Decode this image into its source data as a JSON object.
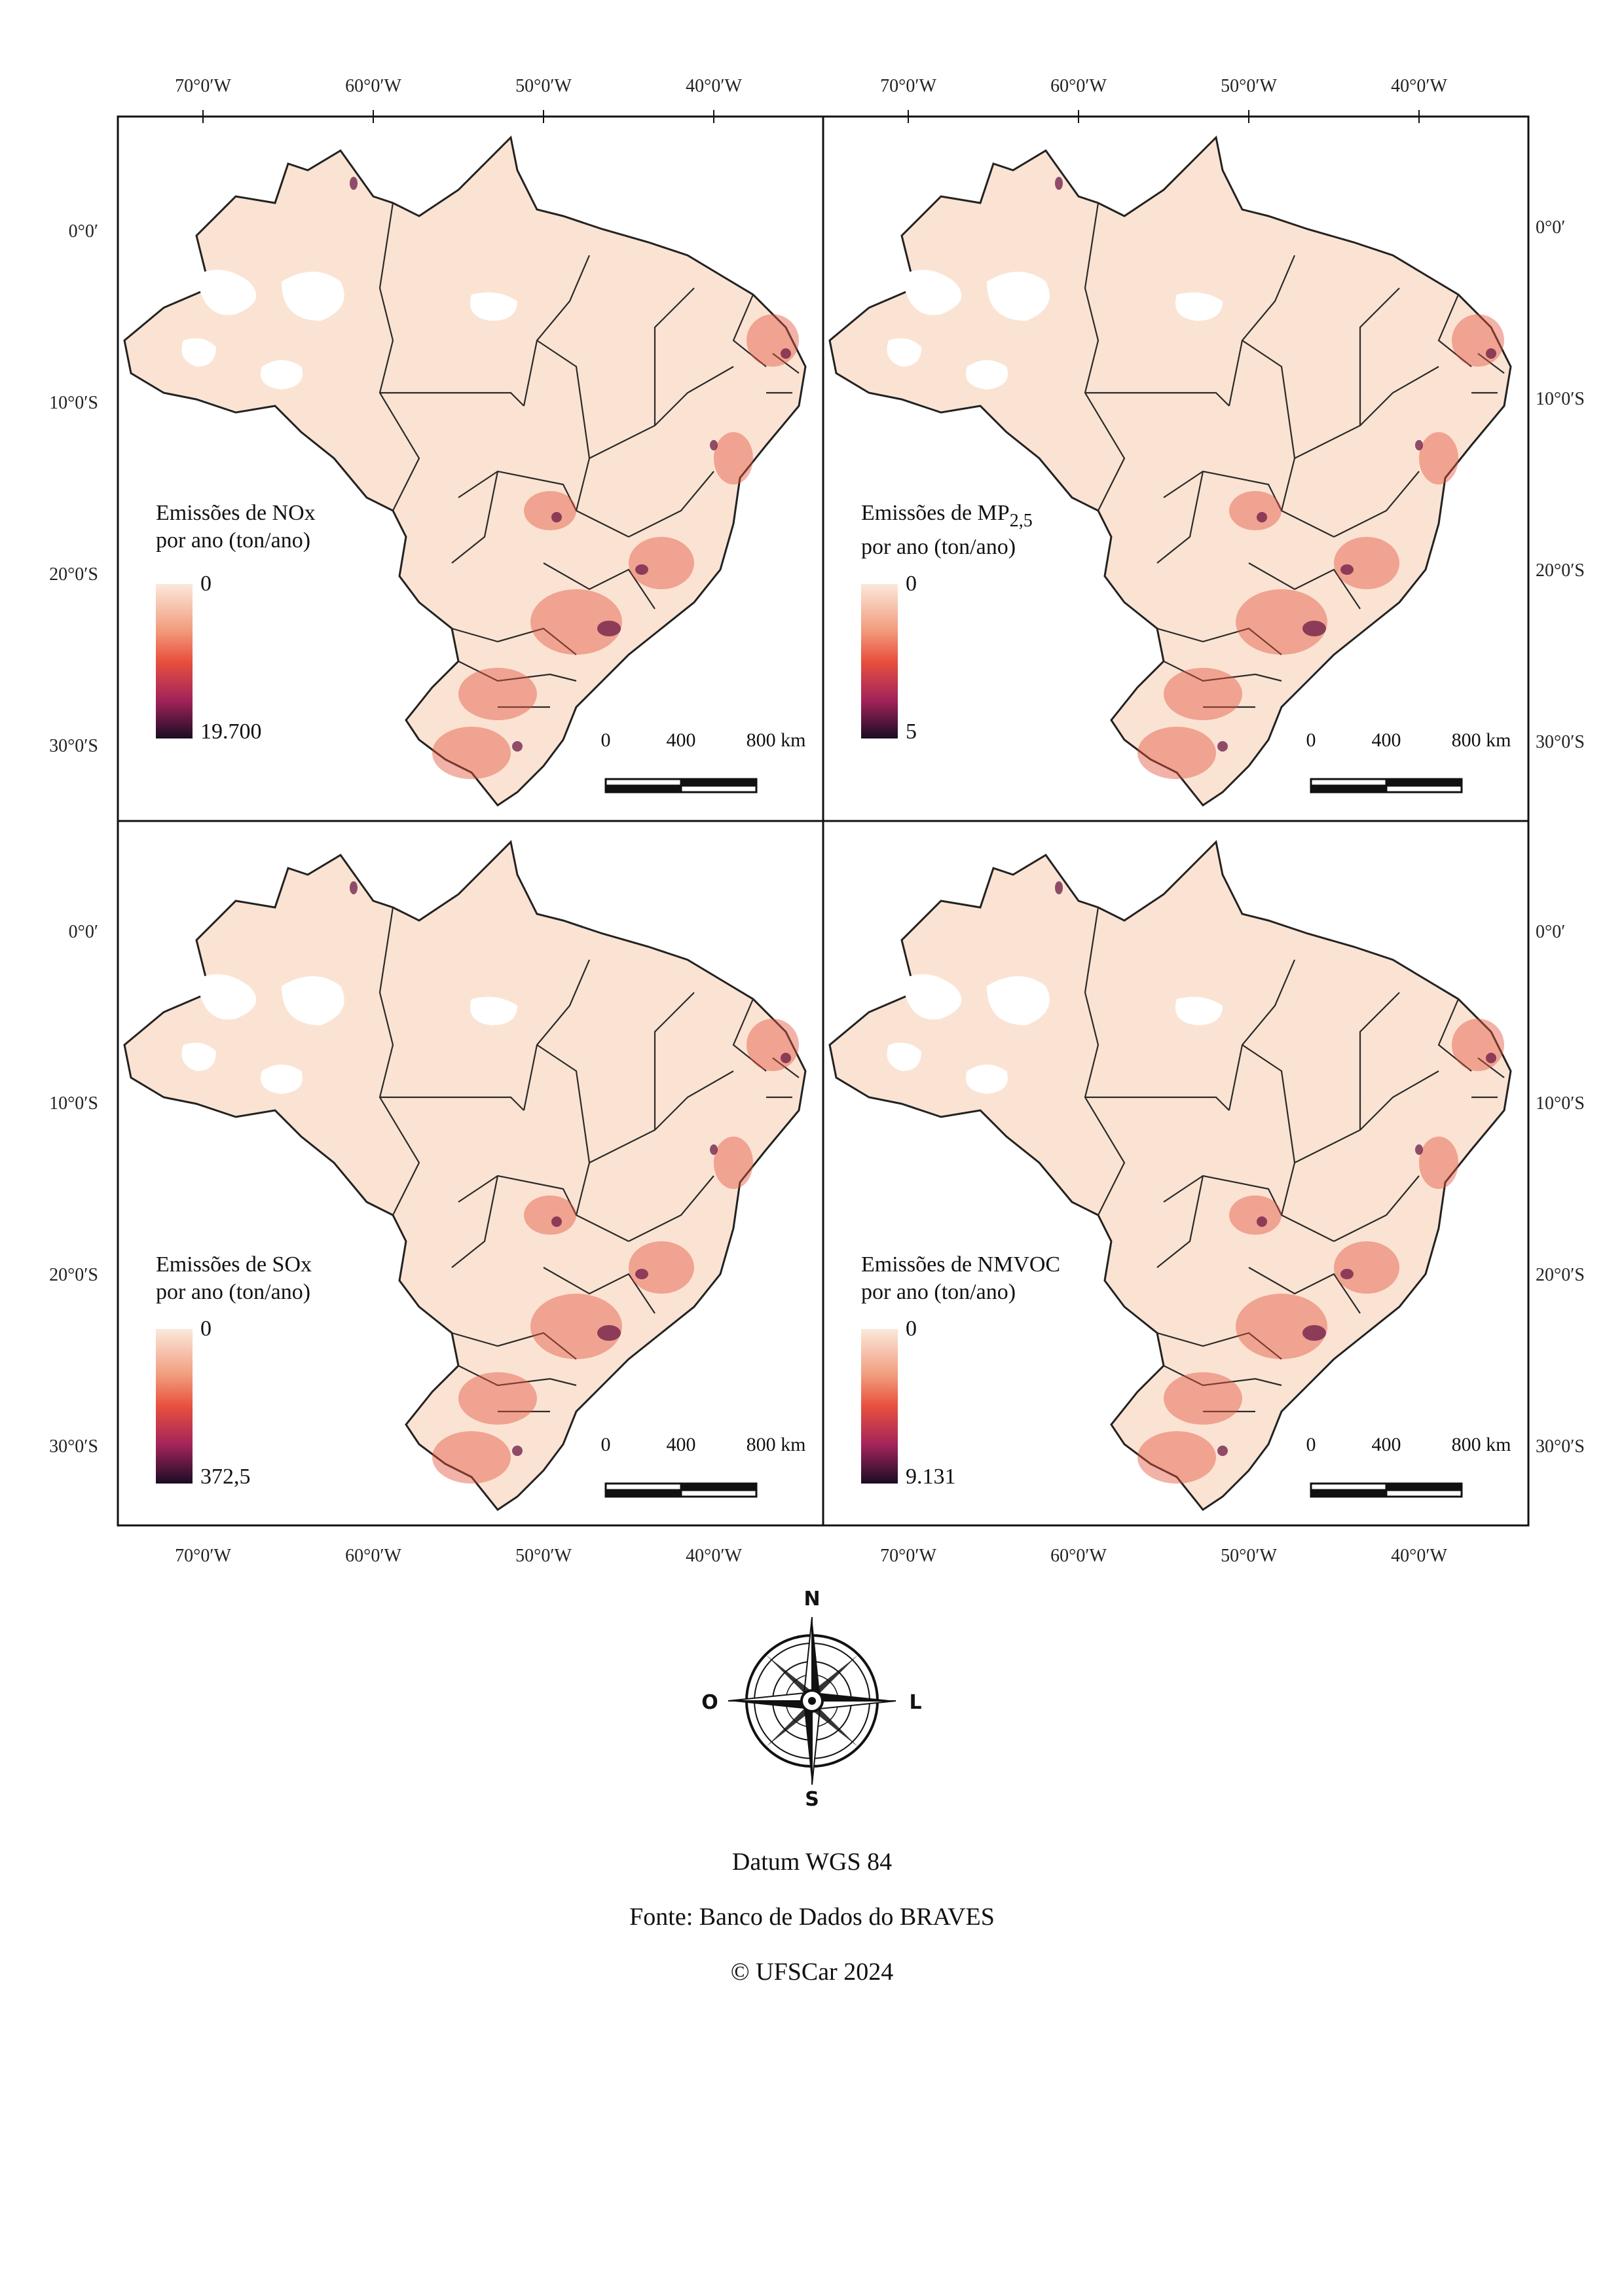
{
  "panels": [
    {
      "id": "nox",
      "title_line1": "Emissões de NOx",
      "title_line2": "por ano (ton/ano)",
      "legend_min": "0",
      "legend_max": "19.700"
    },
    {
      "id": "mp25",
      "title_line1": "Emissões de MP",
      "title_sub": "2,5",
      "title_line2": "por ano (ton/ano)",
      "legend_min": "0",
      "legend_max": "5"
    },
    {
      "id": "sox",
      "title_line1": "Emissões de SOx",
      "title_line2": "por ano (ton/ano)",
      "legend_min": "0",
      "legend_max": "372,5"
    },
    {
      "id": "nmvoc",
      "title_line1": "Emissões de NMVOC",
      "title_line2": "por ano (ton/ano)",
      "legend_min": "0",
      "legend_max": "9.131"
    }
  ],
  "axes": {
    "lon_labels": [
      "70°0′W",
      "60°0′W",
      "50°0′W",
      "40°0′W"
    ],
    "lat_labels": [
      "0°0′",
      "10°0′S",
      "20°0′S",
      "30°0′S"
    ]
  },
  "scale_bar": {
    "labels": [
      "0",
      "400",
      "800 km"
    ]
  },
  "colors": {
    "ramp_low": "#fbe8dc",
    "ramp_mid1": "#f19c7d",
    "ramp_mid2": "#e8503d",
    "ramp_mid3": "#a3245a",
    "ramp_high": "#1b0c24"
  },
  "compass": {
    "north": "N",
    "south": "S",
    "east": "L",
    "west": "O"
  },
  "footer": {
    "datum": "Datum WGS 84",
    "source": "Fonte: Banco de Dados do BRAVES",
    "copyright": "© UFSCar 2024"
  }
}
